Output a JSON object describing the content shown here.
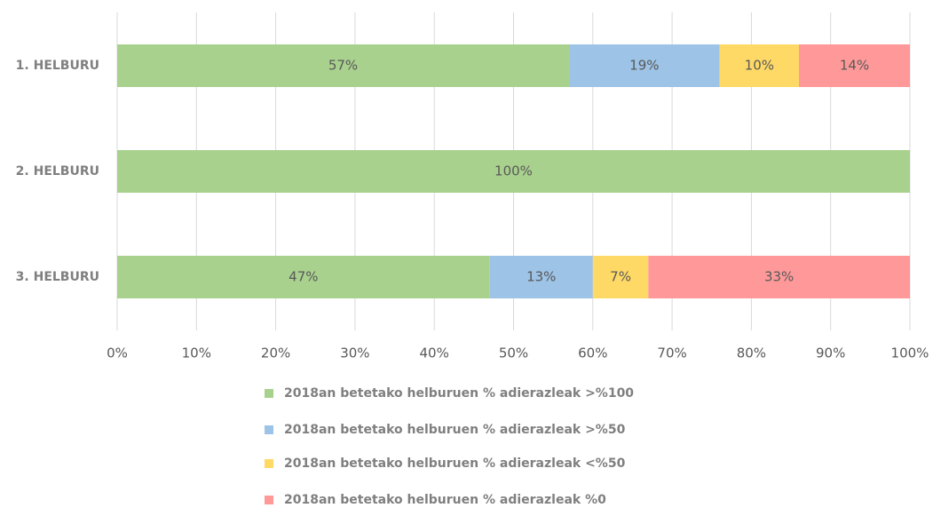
{
  "chart_data": {
    "type": "stacked_bar_horizontal",
    "categories": [
      "1. HELBURU",
      "2. HELBURU",
      "3. HELBURU"
    ],
    "series": [
      {
        "name": "2018an betetako helburuen % adierazleak >%100",
        "color": "#a9d18e",
        "values": [
          57,
          100,
          47
        ],
        "value_labels": [
          "57%",
          "100%",
          "47%"
        ]
      },
      {
        "name": "2018an betetako helburuen % adierazleak >%50",
        "color": "#9dc3e6",
        "values": [
          19,
          0,
          13
        ],
        "value_labels": [
          "19%",
          null,
          "13%"
        ]
      },
      {
        "name": "2018an betetako helburuen % adierazleak <%50",
        "color": "#ffd966",
        "values": [
          10,
          0,
          7
        ],
        "value_labels": [
          "10%",
          null,
          "7%"
        ]
      },
      {
        "name": "2018an betetako helburuen % adierazleak %0",
        "color": "#ff9999",
        "values": [
          14,
          0,
          33
        ],
        "value_labels": [
          "14%",
          null,
          "33%"
        ]
      }
    ],
    "xlim": [
      0,
      100
    ],
    "xticks": [
      {
        "value": 0,
        "label": "0%"
      },
      {
        "value": 10,
        "label": "10%"
      },
      {
        "value": 20,
        "label": "20%"
      },
      {
        "value": 30,
        "label": "30%"
      },
      {
        "value": 40,
        "label": "40%"
      },
      {
        "value": 50,
        "label": "50%"
      },
      {
        "value": 60,
        "label": "60%"
      },
      {
        "value": 70,
        "label": "70%"
      },
      {
        "value": 80,
        "label": "80%"
      },
      {
        "value": 90,
        "label": "90%"
      },
      {
        "value": 100,
        "label": "100%"
      }
    ],
    "grid": true,
    "legend": "bottom"
  }
}
